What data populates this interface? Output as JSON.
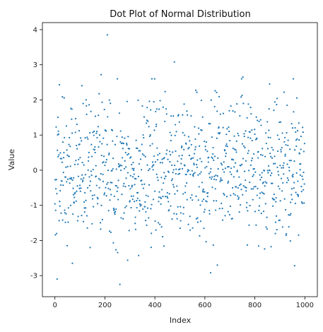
{
  "chart_data": {
    "type": "scatter",
    "title": "Dot Plot of Normal Distribution",
    "xlabel": "Index",
    "ylabel": "Value",
    "xlim": [
      -50,
      1050
    ],
    "ylim": [
      -3.6,
      4.2
    ],
    "xticks": [
      0,
      200,
      400,
      600,
      800,
      1000
    ],
    "yticks": [
      -3,
      -2,
      -1,
      0,
      1,
      2,
      3,
      4
    ],
    "grid": false,
    "legend": "none",
    "n_points": 1000,
    "distribution": {
      "mean": 0,
      "std": 1,
      "seed": 42
    },
    "marker_color": "#1f77b4",
    "highlighted_points": [
      {
        "x": 210,
        "y": 3.85
      },
      {
        "x": 478,
        "y": 3.08
      },
      {
        "x": 260,
        "y": -3.25
      },
      {
        "x": 70,
        "y": -2.65
      },
      {
        "x": 650,
        "y": -2.7
      },
      {
        "x": 752,
        "y": 2.65
      },
      {
        "x": 185,
        "y": 2.72
      }
    ]
  }
}
